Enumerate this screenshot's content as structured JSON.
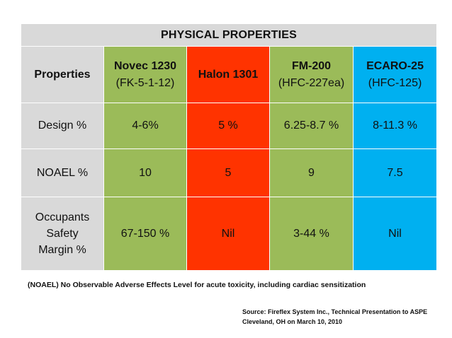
{
  "table": {
    "title": "PHYSICAL PROPERTIES",
    "header": {
      "label": "Properties",
      "columns": [
        {
          "name": "Novec 1230",
          "sub": "(FK-5-1-12)",
          "color": "#9bbb59"
        },
        {
          "name": "Halon 1301",
          "sub": "",
          "color": "#ff3300"
        },
        {
          "name": "FM-200",
          "sub": "(HFC-227ea)",
          "color": "#9bbb59"
        },
        {
          "name": "ECARO-25",
          "sub": "(HFC-125)",
          "color": "#00b0f0"
        }
      ]
    },
    "rows": [
      {
        "label": "Design %",
        "values": [
          "4-6%",
          "5 %",
          "6.25-8.7 %",
          "8-11.3 %"
        ]
      },
      {
        "label": "NOAEL %",
        "values": [
          "10",
          "5",
          "9",
          "7.5"
        ]
      },
      {
        "label_lines": [
          "Occupants",
          "Safety",
          "Margin %"
        ],
        "values": [
          "67-150 %",
          "Nil",
          "3-44 %",
          "Nil"
        ]
      }
    ]
  },
  "note": "(NOAEL) No Observable Adverse Effects Level for acute toxicity, including cardiac sensitization",
  "source": {
    "line1": "Source: Fireflex System Inc., Technical Presentation to ASPE",
    "line2": "Cleveland, OH on March  10, 2010"
  }
}
